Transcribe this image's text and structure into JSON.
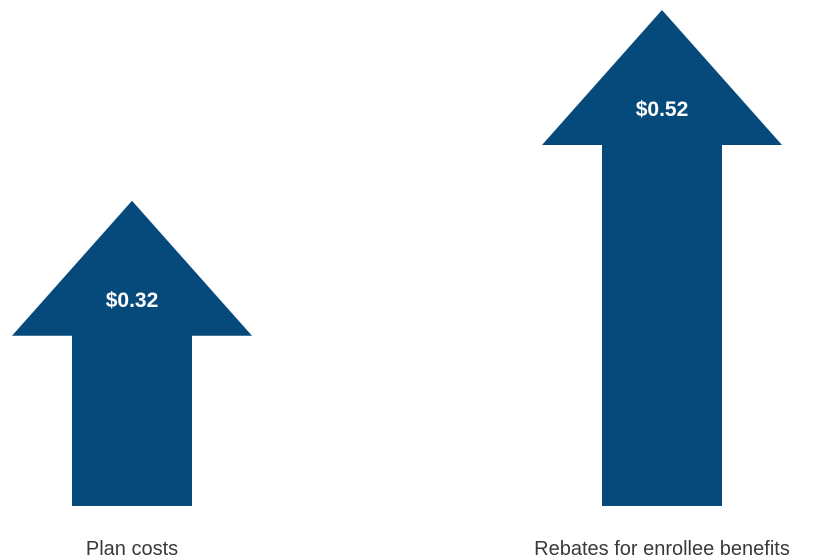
{
  "chart_data": {
    "type": "bar",
    "style": "upward-arrows",
    "categories": [
      "Plan costs",
      "Rebates for enrollee benefits"
    ],
    "values": [
      0.32,
      0.52
    ],
    "value_labels": [
      "$0.32",
      "$0.52"
    ],
    "title": "",
    "xlabel": "",
    "ylabel": "",
    "ylim": [
      0,
      0.52
    ],
    "grid": false,
    "legend": "none",
    "colors": {
      "arrow": "#064a7c",
      "value_text": "#ffffff",
      "category_text": "#3a3a3a"
    }
  }
}
